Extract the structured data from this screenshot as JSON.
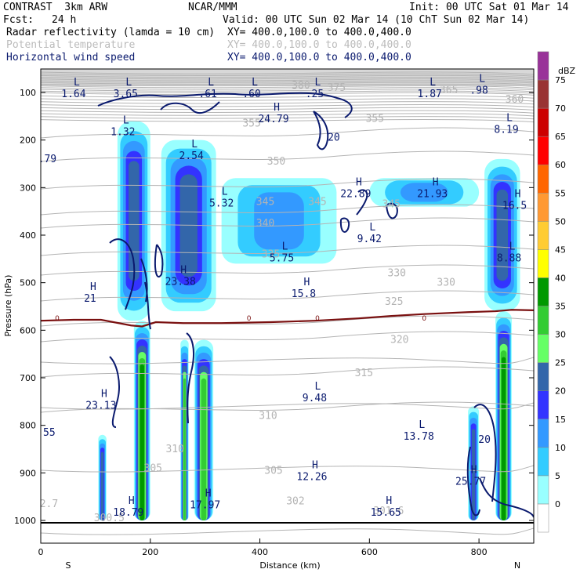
{
  "header": {
    "model": "CONTRAST  3km ARW",
    "org": "NCAR/MMM",
    "init": "Init: 00 UTC Sat 01 Mar 14",
    "fcst_label": "Fcst:",
    "fcst_value": "24 h",
    "valid": "Valid: 00 UTC Sun 02 Mar 14 (10 ChT Sun 02 Mar 14)",
    "fields": [
      {
        "name": "Radar reflectivity (lamda = 10 cm)",
        "xy": "XY= 400.0,100.0 to 400.0,400.0"
      },
      {
        "name": "Potential temperature",
        "xy": "XY= 400.0,100.0 to 400.0,400.0"
      },
      {
        "name": "Horizontal wind speed",
        "xy": "XY= 400.0,100.0 to 400.0,400.0"
      }
    ]
  },
  "colors": {
    "dbz": [
      "#ffffff",
      "#99ffff",
      "#33ccff",
      "#3399ff",
      "#3333ff",
      "#3366aa",
      "#66ff66",
      "#33cc33",
      "#009900",
      "#ffff00",
      "#ffcc33",
      "#ff9933",
      "#ff6600",
      "#ff0000",
      "#cc0000",
      "#993333",
      "#993399",
      "#cc66cc",
      "#cc99cc"
    ],
    "theta": "#b4b4b4",
    "wind": "#0a1a6e",
    "zero_line": "#7a1010"
  },
  "chart_data": {
    "type": "cross-section",
    "xlabel": "Distance (km)",
    "ylabel": "Pressure (hPa)",
    "xlim": [
      0,
      900
    ],
    "ylim": [
      1000,
      50
    ],
    "x_ticks": [
      0,
      200,
      400,
      600,
      800
    ],
    "x_end_labels": [
      "S",
      "N"
    ],
    "y_ticks": [
      100,
      200,
      300,
      400,
      500,
      600,
      700,
      800,
      900,
      1000
    ],
    "colorbar": {
      "label": "dBZ",
      "levels": [
        0,
        5,
        10,
        15,
        20,
        25,
        30,
        35,
        40,
        45,
        50,
        55,
        60,
        65,
        70,
        75
      ]
    },
    "theta_labels": [
      {
        "text": "380",
        "x": 475,
        "p": 85
      },
      {
        "text": "375",
        "x": 540,
        "p": 90
      },
      {
        "text": "365",
        "x": 745,
        "p": 95
      },
      {
        "text": "360",
        "x": 865,
        "p": 115
      },
      {
        "text": "355",
        "x": 385,
        "p": 165
      },
      {
        "text": "355",
        "x": 610,
        "p": 155
      },
      {
        "text": "350",
        "x": 430,
        "p": 245
      },
      {
        "text": "345",
        "x": 410,
        "p": 330
      },
      {
        "text": "345",
        "x": 505,
        "p": 330
      },
      {
        "text": "345",
        "x": 640,
        "p": 335
      },
      {
        "text": "340",
        "x": 410,
        "p": 375
      },
      {
        "text": "335",
        "x": 420,
        "p": 440
      },
      {
        "text": "330",
        "x": 650,
        "p": 480
      },
      {
        "text": "330",
        "x": 740,
        "p": 500
      },
      {
        "text": "325",
        "x": 645,
        "p": 540
      },
      {
        "text": "320",
        "x": 655,
        "p": 620
      },
      {
        "text": "315",
        "x": 590,
        "p": 690
      },
      {
        "text": "310",
        "x": 415,
        "p": 780
      },
      {
        "text": "305",
        "x": 425,
        "p": 895
      },
      {
        "text": "302",
        "x": 465,
        "p": 960
      },
      {
        "text": "301.6",
        "x": 635,
        "p": 980
      },
      {
        "text": "300.5",
        "x": 125,
        "p": 995
      },
      {
        "text": "2.7",
        "x": 15,
        "p": 965
      },
      {
        "text": "310",
        "x": 245,
        "p": 850
      },
      {
        "text": "305",
        "x": 205,
        "p": 890
      }
    ],
    "zero_labels": [
      {
        "text": "0",
        "x": 30
      },
      {
        "text": "0",
        "x": 380
      },
      {
        "text": "0",
        "x": 505
      },
      {
        "text": "0",
        "x": 700
      }
    ],
    "wind_extrema": [
      {
        "kind": "L",
        "value": "1.64",
        "x": 60,
        "p": 95
      },
      {
        "kind": "L",
        "value": "3.65",
        "x": 155,
        "p": 95
      },
      {
        "kind": "L",
        "value": ".61",
        "x": 305,
        "p": 95
      },
      {
        "kind": "L",
        "value": ".60",
        "x": 385,
        "p": 95
      },
      {
        "kind": "L",
        "value": ".25",
        "x": 500,
        "p": 95
      },
      {
        "kind": "L",
        "value": "1.87",
        "x": 710,
        "p": 95
      },
      {
        "kind": "L",
        "value": ".98",
        "x": 800,
        "p": 88
      },
      {
        "kind": "H",
        "value": "24.79",
        "x": 425,
        "p": 148
      },
      {
        "kind": "",
        "value": "20",
        "x": 535,
        "p": 195
      },
      {
        "kind": "L",
        "value": "1.32",
        "x": 150,
        "p": 175
      },
      {
        "kind": "L",
        "value": "8.19",
        "x": 850,
        "p": 170
      },
      {
        "kind": "L",
        "value": "2.54",
        "x": 275,
        "p": 225
      },
      {
        "kind": "",
        "value": ".79",
        "x": 12,
        "p": 240
      },
      {
        "kind": "L",
        "value": "5.32",
        "x": 330,
        "p": 325
      },
      {
        "kind": "H",
        "value": "22.89",
        "x": 575,
        "p": 305
      },
      {
        "kind": "H",
        "value": "21.93",
        "x": 715,
        "p": 305
      },
      {
        "kind": "H",
        "value": "16.5",
        "x": 865,
        "p": 330
      },
      {
        "kind": "L",
        "value": "9.42",
        "x": 600,
        "p": 400
      },
      {
        "kind": "L",
        "value": "5.75",
        "x": 440,
        "p": 440
      },
      {
        "kind": "L",
        "value": "8.88",
        "x": 855,
        "p": 440
      },
      {
        "kind": "H",
        "value": "23.38",
        "x": 255,
        "p": 490
      },
      {
        "kind": "H",
        "value": "21",
        "x": 90,
        "p": 525
      },
      {
        "kind": "H",
        "value": "15.8",
        "x": 480,
        "p": 515
      },
      {
        "kind": "H",
        "value": "23.13",
        "x": 110,
        "p": 750
      },
      {
        "kind": "L",
        "value": "9.48",
        "x": 500,
        "p": 735
      },
      {
        "kind": "",
        "value": ".55",
        "x": 10,
        "p": 815
      },
      {
        "kind": "L",
        "value": "13.78",
        "x": 690,
        "p": 815
      },
      {
        "kind": "",
        "value": "20",
        "x": 810,
        "p": 830
      },
      {
        "kind": "H",
        "value": "12.26",
        "x": 495,
        "p": 900
      },
      {
        "kind": "H",
        "value": "25.77",
        "x": 785,
        "p": 910
      },
      {
        "kind": "H",
        "value": "17.97",
        "x": 300,
        "p": 960
      },
      {
        "kind": "H",
        "value": "18.79",
        "x": 160,
        "p": 975
      },
      {
        "kind": "H",
        "value": "15.65",
        "x": 630,
        "p": 975
      }
    ],
    "reflectivity_cells": [
      {
        "name": "tower-180",
        "x_range": [
          170,
          200
        ],
        "p_range": [
          580,
          1000
        ],
        "peak_dbz": 35
      },
      {
        "name": "tower-260",
        "x_range": [
          255,
          270
        ],
        "p_range": [
          620,
          1000
        ],
        "peak_dbz": 30
      },
      {
        "name": "tower-295",
        "x_range": [
          280,
          315
        ],
        "p_range": [
          620,
          1000
        ],
        "peak_dbz": 30
      },
      {
        "name": "tower-845",
        "x_range": [
          830,
          860
        ],
        "p_range": [
          560,
          1000
        ],
        "peak_dbz": 35
      },
      {
        "name": "cell-110",
        "x_range": [
          105,
          120
        ],
        "p_range": [
          820,
          1000
        ],
        "peak_dbz": 20
      },
      {
        "name": "cell-790",
        "x_range": [
          780,
          800
        ],
        "p_range": [
          760,
          1000
        ],
        "peak_dbz": 20
      },
      {
        "name": "anvil-160",
        "x_range": [
          140,
          200
        ],
        "p_range": [
          160,
          580
        ],
        "peak_dbz": 20
      },
      {
        "name": "anvil-270",
        "x_range": [
          220,
          320
        ],
        "p_range": [
          200,
          560
        ],
        "peak_dbz": 20
      },
      {
        "name": "anvil-845",
        "x_range": [
          810,
          875
        ],
        "p_range": [
          240,
          560
        ],
        "peak_dbz": 20
      },
      {
        "name": "cirrus-380",
        "x_range": [
          330,
          540
        ],
        "p_range": [
          280,
          460
        ],
        "peak_dbz": 10
      },
      {
        "name": "cirrus-650",
        "x_range": [
          600,
          800
        ],
        "p_range": [
          280,
          340
        ],
        "peak_dbz": 10
      }
    ]
  }
}
